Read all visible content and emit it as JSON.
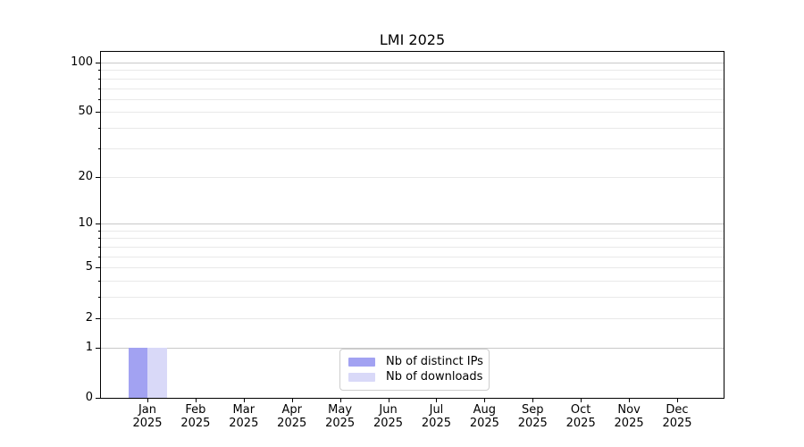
{
  "chart_data": {
    "type": "bar",
    "title": "LMI 2025",
    "categories": [
      "Jan",
      "Feb",
      "Mar",
      "Apr",
      "May",
      "Jun",
      "Jul",
      "Aug",
      "Sep",
      "Oct",
      "Nov",
      "Dec"
    ],
    "year_label": "2025",
    "series": [
      {
        "name": "Nb of distinct IPs",
        "color": "#a2a2f2",
        "values": [
          1,
          0,
          0,
          0,
          0,
          0,
          0,
          0,
          0,
          0,
          0,
          0
        ]
      },
      {
        "name": "Nb of downloads",
        "color": "#d9d9f8",
        "values": [
          1,
          0,
          0,
          0,
          0,
          0,
          0,
          0,
          0,
          0,
          0,
          0
        ]
      }
    ],
    "yscale": "log1p",
    "ylim": [
      0,
      116
    ],
    "yticks_labeled": [
      0,
      1,
      2,
      5,
      10,
      20,
      50,
      100
    ],
    "ygrid_major": [
      1,
      10,
      100
    ],
    "ygrid_minor": [
      2,
      3,
      4,
      5,
      6,
      7,
      8,
      9,
      20,
      30,
      40,
      50,
      60,
      70,
      80,
      90
    ],
    "grid_on": true,
    "legend_position": "lower center",
    "colors": {
      "grid_major": "#c9c9c9",
      "grid_minor": "#e9e9e9",
      "spine": "#000000",
      "background": "#ffffff"
    }
  }
}
